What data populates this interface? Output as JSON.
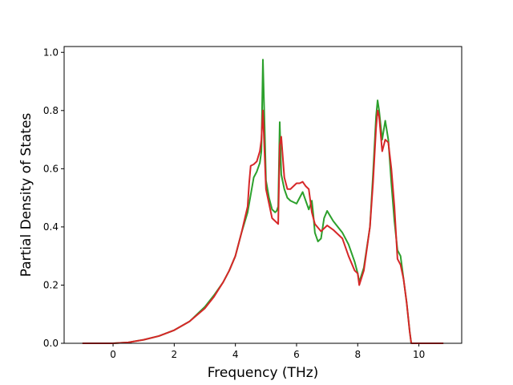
{
  "chart_data": {
    "type": "line",
    "xlabel": "Frequency (THz)",
    "ylabel": "Partial Density of States",
    "xlim": [
      -1.6,
      11.4
    ],
    "ylim": [
      0.0,
      1.02
    ],
    "xticks": [
      0,
      2,
      4,
      6,
      8,
      10
    ],
    "yticks": [
      0.0,
      0.2,
      0.4,
      0.6,
      0.8,
      1.0
    ],
    "xtick_labels": [
      "0",
      "2",
      "4",
      "6",
      "8",
      "10"
    ],
    "ytick_labels": [
      "0.0",
      "0.2",
      "0.4",
      "0.6",
      "0.8",
      "1.0"
    ],
    "grid": false,
    "legend": "none",
    "series": [
      {
        "color": "#2ca02c",
        "x": [
          -1.0,
          0.0,
          0.5,
          1.0,
          1.5,
          2.0,
          2.5,
          3.0,
          3.3,
          3.6,
          3.8,
          4.0,
          4.2,
          4.4,
          4.5,
          4.6,
          4.7,
          4.8,
          4.85,
          4.9,
          5.0,
          5.1,
          5.2,
          5.3,
          5.35,
          5.4,
          5.45,
          5.5,
          5.6,
          5.7,
          5.8,
          6.0,
          6.2,
          6.4,
          6.5,
          6.55,
          6.6,
          6.7,
          6.8,
          6.9,
          7.0,
          7.2,
          7.5,
          7.7,
          7.9,
          8.0,
          8.05,
          8.2,
          8.4,
          8.5,
          8.6,
          8.65,
          8.7,
          8.8,
          8.9,
          9.0,
          9.1,
          9.2,
          9.3,
          9.4,
          9.5,
          9.6,
          9.7,
          9.75,
          9.8,
          10.0,
          10.8
        ],
        "values": [
          0.0,
          0.0,
          0.003,
          0.012,
          0.025,
          0.045,
          0.075,
          0.125,
          0.165,
          0.21,
          0.25,
          0.3,
          0.38,
          0.45,
          0.51,
          0.57,
          0.59,
          0.62,
          0.66,
          0.975,
          0.56,
          0.5,
          0.46,
          0.45,
          0.455,
          0.47,
          0.76,
          0.58,
          0.53,
          0.5,
          0.49,
          0.48,
          0.52,
          0.46,
          0.49,
          0.44,
          0.38,
          0.35,
          0.36,
          0.43,
          0.455,
          0.42,
          0.38,
          0.34,
          0.28,
          0.24,
          0.21,
          0.26,
          0.4,
          0.58,
          0.78,
          0.835,
          0.8,
          0.7,
          0.765,
          0.7,
          0.55,
          0.42,
          0.32,
          0.3,
          0.22,
          0.14,
          0.04,
          0.0,
          0.0,
          0.0,
          0.0
        ]
      },
      {
        "color": "#d62728",
        "x": [
          -1.0,
          0.0,
          0.5,
          1.0,
          1.5,
          2.0,
          2.5,
          3.0,
          3.3,
          3.6,
          3.8,
          4.0,
          4.2,
          4.4,
          4.45,
          4.5,
          4.6,
          4.7,
          4.8,
          4.85,
          4.9,
          5.0,
          5.1,
          5.2,
          5.3,
          5.4,
          5.45,
          5.5,
          5.6,
          5.7,
          5.8,
          5.9,
          6.0,
          6.1,
          6.2,
          6.3,
          6.4,
          6.5,
          6.6,
          6.8,
          7.0,
          7.2,
          7.5,
          7.7,
          7.9,
          8.0,
          8.05,
          8.2,
          8.4,
          8.5,
          8.6,
          8.65,
          8.7,
          8.8,
          8.9,
          9.0,
          9.1,
          9.2,
          9.3,
          9.4,
          9.5,
          9.6,
          9.7,
          9.75,
          9.8,
          10.0,
          10.8
        ],
        "values": [
          0.0,
          0.0,
          0.003,
          0.012,
          0.025,
          0.045,
          0.075,
          0.12,
          0.16,
          0.21,
          0.25,
          0.3,
          0.38,
          0.47,
          0.55,
          0.61,
          0.615,
          0.625,
          0.66,
          0.7,
          0.8,
          0.53,
          0.48,
          0.43,
          0.42,
          0.41,
          0.68,
          0.71,
          0.57,
          0.53,
          0.53,
          0.54,
          0.55,
          0.55,
          0.555,
          0.54,
          0.53,
          0.45,
          0.41,
          0.385,
          0.405,
          0.39,
          0.36,
          0.3,
          0.25,
          0.24,
          0.2,
          0.25,
          0.4,
          0.55,
          0.74,
          0.8,
          0.78,
          0.66,
          0.7,
          0.69,
          0.6,
          0.47,
          0.29,
          0.27,
          0.22,
          0.14,
          0.04,
          0.0,
          0.0,
          0.0,
          0.0
        ]
      }
    ]
  }
}
